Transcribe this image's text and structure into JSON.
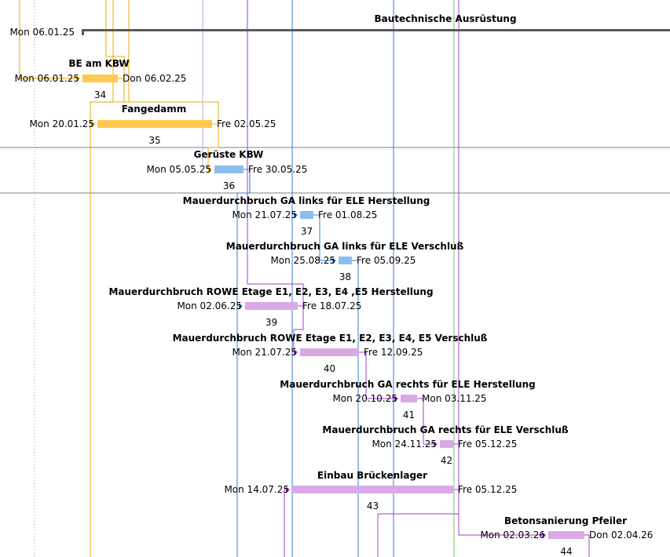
{
  "colors": {
    "orange": "#FFC94D",
    "orange_line": "#E8A800",
    "blue": "#8DBDED",
    "blue_line": "#2F7FD8",
    "purple": "#D9A9E6",
    "purple_line": "#A33FD0",
    "green_line": "#7CBF6B",
    "grid": "#808080",
    "summary": "#595959"
  },
  "summary": {
    "name": "Bautechnische Ausrüstung",
    "start": "Mon 06.01.25"
  },
  "tasks": [
    {
      "id": "34",
      "name": "BE am KBW",
      "start": "Mon 06.01.25",
      "finish": "Don 06.02.25",
      "color": "orange"
    },
    {
      "id": "35",
      "name": "Fangedamm",
      "start": "Mon 20.01.25",
      "finish": "Fre 02.05.25",
      "color": "orange"
    },
    {
      "id": "36",
      "name": "Gerüste KBW",
      "start": "Mon 05.05.25",
      "finish": "Fre 30.05.25",
      "color": "blue"
    },
    {
      "id": "37",
      "name": "Mauerdurchbruch GA links für ELE Herstellung",
      "start": "Mon 21.07.25",
      "finish": "Fre 01.08.25",
      "color": "blue"
    },
    {
      "id": "38",
      "name": "Mauerdurchbruch GA links für ELE Verschluß",
      "start": "Mon 25.08.25",
      "finish": "Fre 05.09.25",
      "color": "blue"
    },
    {
      "id": "39",
      "name": "Mauerdurchbruch ROWE Etage E1, E2, E3, E4 ,E5 Herstellung",
      "start": "Mon 02.06.25",
      "finish": "Fre 18.07.25",
      "color": "purple"
    },
    {
      "id": "40",
      "name": "Mauerdurchbruch ROWE Etage E1, E2, E3, E4, E5 Verschluß",
      "start": "Mon 21.07.25",
      "finish": "Fre 12.09.25",
      "color": "purple"
    },
    {
      "id": "41",
      "name": "Mauerdurchbruch GA rechts für ELE Herstellung",
      "start": "Mon 20.10.25",
      "finish": "Mon 03.11.25",
      "color": "purple"
    },
    {
      "id": "42",
      "name": "Mauerdurchbruch GA rechts für ELE Verschluß",
      "start": "Mon 24.11.25",
      "finish": "Fre 05.12.25",
      "color": "purple"
    },
    {
      "id": "43",
      "name": "Einbau Brückenlager",
      "start": "Mon 14.07.25",
      "finish": "Fre 05.12.25",
      "color": "purple"
    },
    {
      "id": "44",
      "name": "Betonsanierung Pfeiler",
      "start": "Mon 02.03.26",
      "finish": "Don 02.04.26",
      "color": "purple"
    }
  ]
}
